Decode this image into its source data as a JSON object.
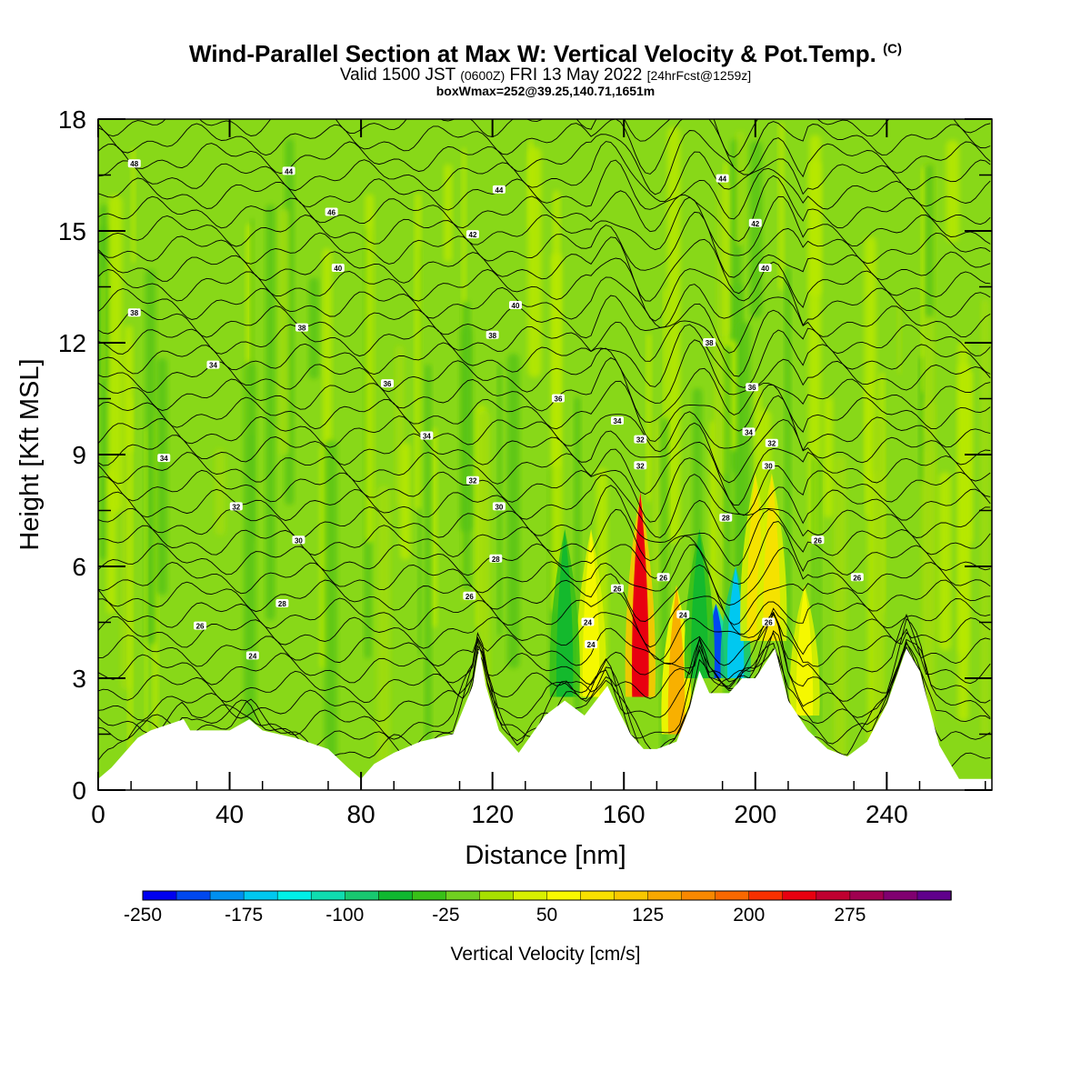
{
  "header": {
    "title": "Wind-Parallel Section at Max W: Vertical Velocity & Pot.Temp.",
    "copyright": "(C)",
    "subtitle_a": "Valid 1500 JST",
    "subtitle_b": "(0600Z)",
    "subtitle_c": "FRI 13 May 2022",
    "subtitle_d": "[24hrFcst@1259z]",
    "subtitle2": "boxWmax=252@39.25,140.71,1651m"
  },
  "chart_data": {
    "type": "heatmap",
    "xlabel": "Distance [nm]",
    "ylabel": "Height [Kft MSL]",
    "xlim": [
      0,
      272
    ],
    "ylim": [
      0,
      18
    ],
    "x_ticks": [
      0,
      40,
      80,
      120,
      160,
      200,
      240
    ],
    "y_ticks": [
      0,
      3,
      6,
      9,
      12,
      15,
      18
    ],
    "colorbar": {
      "label": "Vertical Velocity [cm/s]",
      "min": -250,
      "max": 325,
      "step": 25,
      "tick_labels": [
        "-250",
        "-175",
        "-100",
        "-25",
        "50",
        "125",
        "200",
        "275"
      ],
      "tick_values": [
        -250,
        -175,
        -100,
        -25,
        50,
        125,
        200,
        275
      ],
      "colors": [
        "#0000f0",
        "#0048f0",
        "#0090f0",
        "#00c8f0",
        "#00f0e8",
        "#10dcb0",
        "#18c870",
        "#10b830",
        "#38c018",
        "#70d020",
        "#a8e000",
        "#d8f000",
        "#f8f800",
        "#f8e000",
        "#f8c800",
        "#f8a800",
        "#f88800",
        "#f86800",
        "#f83000",
        "#e80010",
        "#c00030",
        "#a00050",
        "#800070",
        "#60008c"
      ]
    },
    "velocity_features": [
      {
        "x": 165,
        "z_bottom": 2.5,
        "z_top": 8.0,
        "w": 225
      },
      {
        "x": 176,
        "z_bottom": 1.5,
        "z_top": 5.5,
        "w": 140
      },
      {
        "x": 188,
        "z_bottom": 3.0,
        "z_top": 5.0,
        "w": -210
      },
      {
        "x": 194,
        "z_bottom": 3.0,
        "z_top": 6.0,
        "w": -175
      },
      {
        "x": 200,
        "z_bottom": 4.0,
        "z_top": 8.5,
        "w": 75
      },
      {
        "x": 205,
        "z_bottom": 4.0,
        "z_top": 8.5,
        "w": 75
      },
      {
        "x": 183,
        "z_bottom": 3.0,
        "z_top": 7.0,
        "w": -75
      },
      {
        "x": 150,
        "z_bottom": 2.5,
        "z_top": 7.0,
        "w": 50
      },
      {
        "x": 215,
        "z_bottom": 2.0,
        "z_top": 5.5,
        "w": 60
      },
      {
        "x": 142,
        "z_bottom": 2.5,
        "z_top": 7.0,
        "w": -75
      }
    ],
    "terrain": [
      [
        0,
        0.3
      ],
      [
        4,
        0.6
      ],
      [
        8,
        1.0
      ],
      [
        12,
        1.4
      ],
      [
        16,
        1.6
      ],
      [
        26,
        1.9
      ],
      [
        28,
        1.6
      ],
      [
        40,
        1.6
      ],
      [
        46,
        1.9
      ],
      [
        50,
        1.6
      ],
      [
        60,
        1.4
      ],
      [
        70,
        1.1
      ],
      [
        76,
        0.6
      ],
      [
        80,
        0.3
      ],
      [
        84,
        0.7
      ],
      [
        90,
        1.0
      ],
      [
        98,
        1.3
      ],
      [
        108,
        1.5
      ],
      [
        114,
        2.8
      ],
      [
        116,
        3.8
      ],
      [
        118,
        2.8
      ],
      [
        122,
        1.6
      ],
      [
        128,
        1.0
      ],
      [
        136,
        2.0
      ],
      [
        142,
        2.4
      ],
      [
        148,
        2.0
      ],
      [
        155,
        2.8
      ],
      [
        158,
        2.2
      ],
      [
        162,
        1.5
      ],
      [
        166,
        1.1
      ],
      [
        170,
        1.1
      ],
      [
        176,
        1.3
      ],
      [
        180,
        2.2
      ],
      [
        183,
        3.2
      ],
      [
        186,
        2.6
      ],
      [
        192,
        2.6
      ],
      [
        196,
        3.0
      ],
      [
        200,
        3.0
      ],
      [
        206,
        3.8
      ],
      [
        210,
        2.4
      ],
      [
        216,
        1.6
      ],
      [
        222,
        1.1
      ],
      [
        228,
        0.9
      ],
      [
        234,
        1.3
      ],
      [
        240,
        2.3
      ],
      [
        246,
        3.8
      ],
      [
        250,
        3.2
      ],
      [
        256,
        1.2
      ],
      [
        262,
        0.3
      ],
      [
        272,
        0.3
      ]
    ],
    "theta_labels": [
      {
        "x": 11,
        "y": 16.8,
        "text": "48"
      },
      {
        "x": 58,
        "y": 16.6,
        "text": "44"
      },
      {
        "x": 71,
        "y": 15.5,
        "text": "46"
      },
      {
        "x": 122,
        "y": 16.1,
        "text": "44"
      },
      {
        "x": 190,
        "y": 16.4,
        "text": "44"
      },
      {
        "x": 114,
        "y": 14.9,
        "text": "42"
      },
      {
        "x": 200,
        "y": 15.2,
        "text": "42"
      },
      {
        "x": 73,
        "y": 14.0,
        "text": "40"
      },
      {
        "x": 203,
        "y": 14.0,
        "text": "40"
      },
      {
        "x": 127,
        "y": 13.0,
        "text": "40"
      },
      {
        "x": 11,
        "y": 12.8,
        "text": "38"
      },
      {
        "x": 62,
        "y": 12.4,
        "text": "38"
      },
      {
        "x": 120,
        "y": 12.2,
        "text": "38"
      },
      {
        "x": 186,
        "y": 12.0,
        "text": "38"
      },
      {
        "x": 35,
        "y": 11.4,
        "text": "34"
      },
      {
        "x": 88,
        "y": 10.9,
        "text": "36"
      },
      {
        "x": 140,
        "y": 10.5,
        "text": "36"
      },
      {
        "x": 199,
        "y": 10.8,
        "text": "36"
      },
      {
        "x": 158,
        "y": 9.9,
        "text": "34"
      },
      {
        "x": 100,
        "y": 9.5,
        "text": "34"
      },
      {
        "x": 198,
        "y": 9.6,
        "text": "34"
      },
      {
        "x": 165,
        "y": 9.4,
        "text": "32"
      },
      {
        "x": 205,
        "y": 9.3,
        "text": "32"
      },
      {
        "x": 20,
        "y": 8.9,
        "text": "34"
      },
      {
        "x": 165,
        "y": 8.7,
        "text": "32"
      },
      {
        "x": 204,
        "y": 8.7,
        "text": "30"
      },
      {
        "x": 114,
        "y": 8.3,
        "text": "32"
      },
      {
        "x": 122,
        "y": 7.6,
        "text": "30"
      },
      {
        "x": 42,
        "y": 7.6,
        "text": "32"
      },
      {
        "x": 191,
        "y": 7.3,
        "text": "28"
      },
      {
        "x": 61,
        "y": 6.7,
        "text": "30"
      },
      {
        "x": 219,
        "y": 6.7,
        "text": "26"
      },
      {
        "x": 121,
        "y": 6.2,
        "text": "28"
      },
      {
        "x": 172,
        "y": 5.7,
        "text": "26"
      },
      {
        "x": 231,
        "y": 5.7,
        "text": "26"
      },
      {
        "x": 158,
        "y": 5.4,
        "text": "26"
      },
      {
        "x": 113,
        "y": 5.2,
        "text": "26"
      },
      {
        "x": 56,
        "y": 5.0,
        "text": "28"
      },
      {
        "x": 178,
        "y": 4.7,
        "text": "24"
      },
      {
        "x": 149,
        "y": 4.5,
        "text": "24"
      },
      {
        "x": 204,
        "y": 4.5,
        "text": "26"
      },
      {
        "x": 31,
        "y": 4.4,
        "text": "26"
      },
      {
        "x": 150,
        "y": 3.9,
        "text": "24"
      },
      {
        "x": 47,
        "y": 3.6,
        "text": "24"
      }
    ]
  }
}
